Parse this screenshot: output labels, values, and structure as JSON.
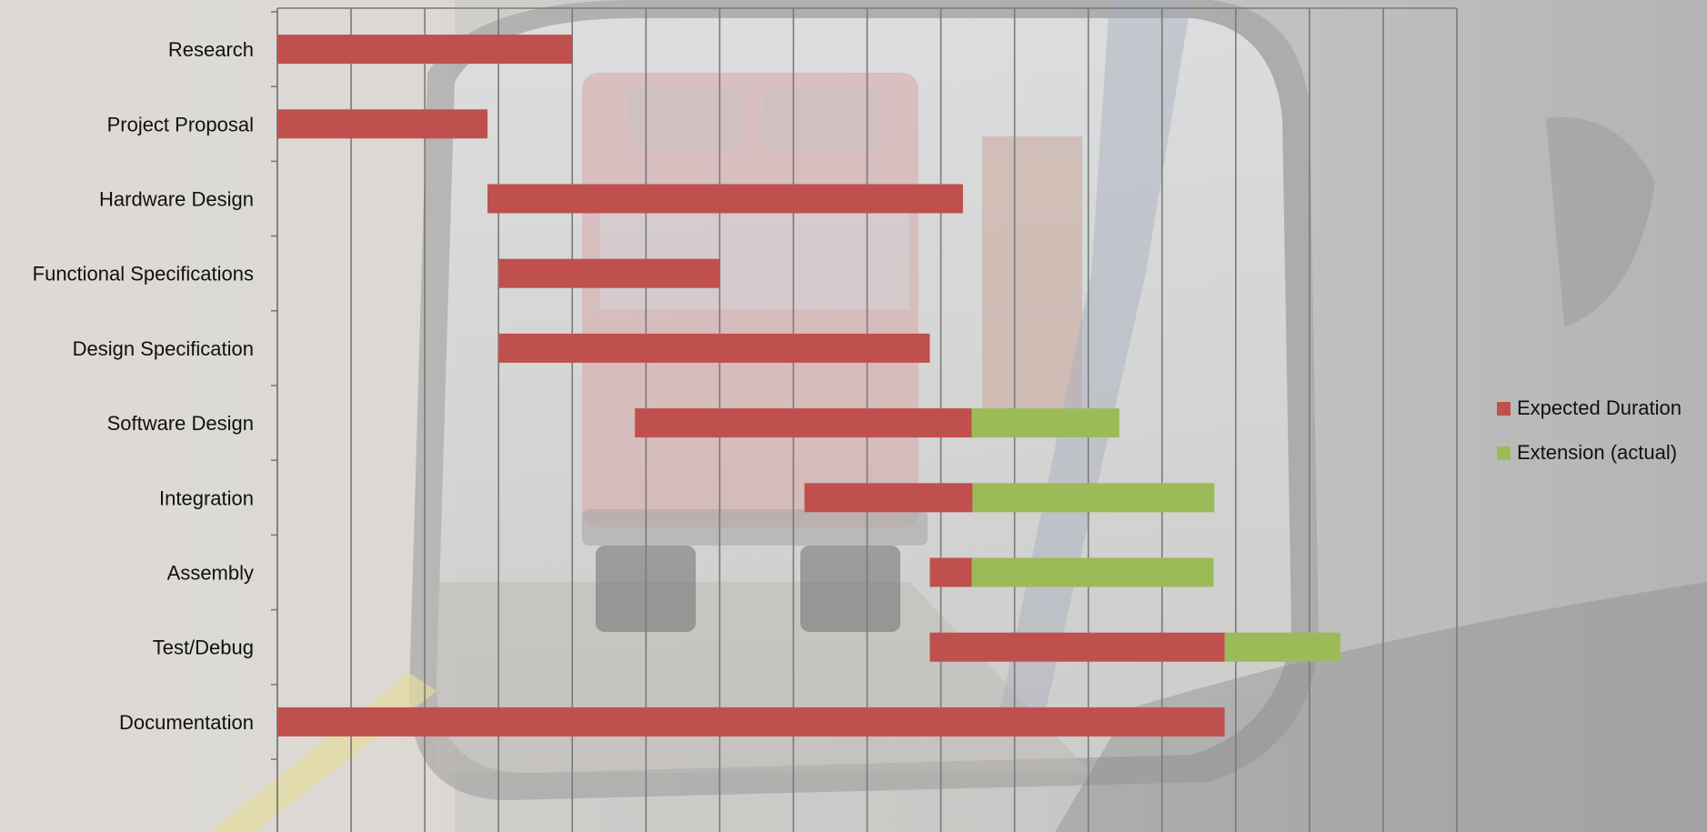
{
  "chart_data": {
    "type": "bar",
    "orientation": "horizontal",
    "stacked": true,
    "categories": [
      "Research",
      "Project Proposal",
      "Hardware Design",
      "Functional Specifications",
      "Design Specification",
      "Software Design",
      "Integration",
      "Assembly",
      "Test/Debug",
      "Documentation"
    ],
    "start": [
      0,
      0,
      2.85,
      3,
      3,
      4.85,
      7.15,
      8.85,
      8.85,
      0
    ],
    "series": [
      {
        "name": "Expected Duration",
        "color": "#C0504D",
        "values": [
          4,
          2.85,
          6.45,
          3,
          5.85,
          4.57,
          2.28,
          0.57,
          4,
          12.85
        ]
      },
      {
        "name": "Extension (actual)",
        "color": "#9BBB59",
        "values": [
          0,
          0,
          0,
          0,
          0,
          2,
          3.28,
          3.28,
          1.57,
          0
        ]
      }
    ],
    "xlim": [
      0,
      16
    ],
    "grid": true,
    "legend_position": "right"
  }
}
